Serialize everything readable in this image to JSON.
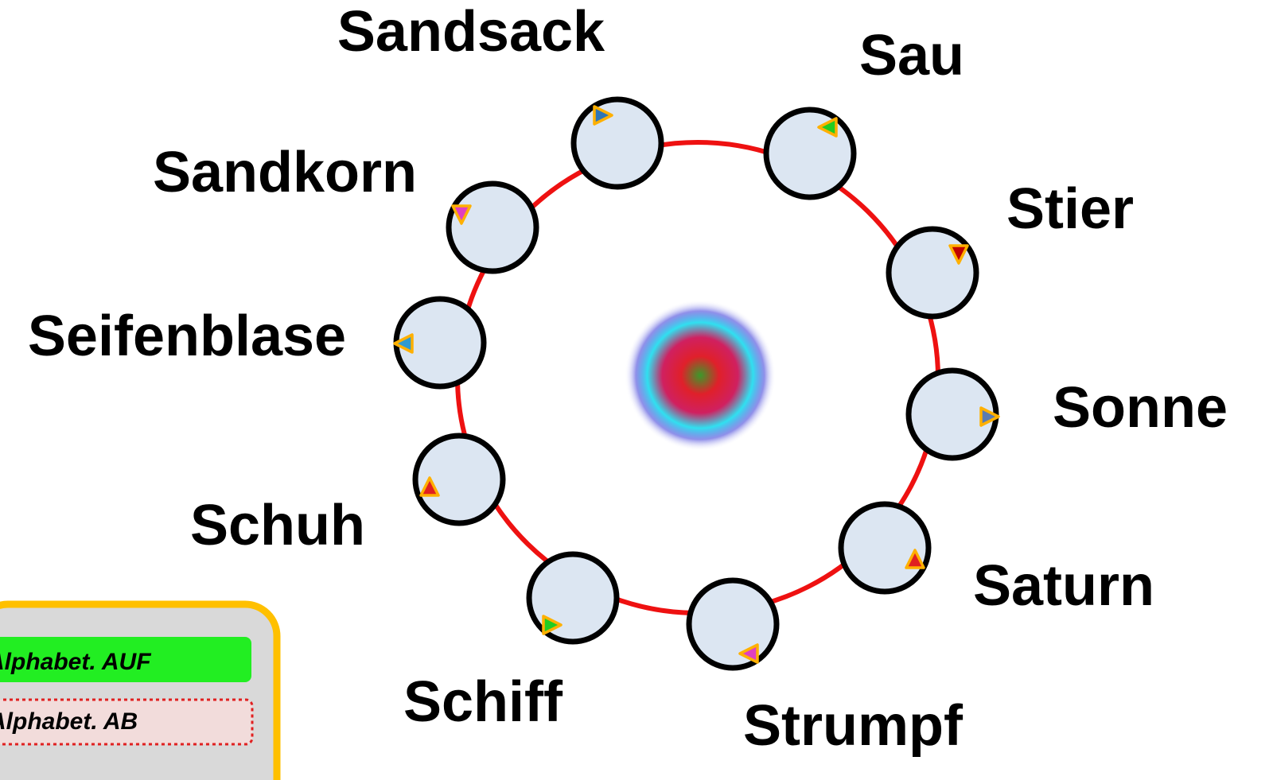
{
  "words": [
    "Sandsack",
    "Sau",
    "Stier",
    "Sonne",
    "Saturn",
    "Strumpf",
    "Schiff",
    "Schuh",
    "Seifenblase",
    "Sandkorn"
  ],
  "buttons": [
    "Alphabet. AUF",
    "Alphabet. AB"
  ]
}
